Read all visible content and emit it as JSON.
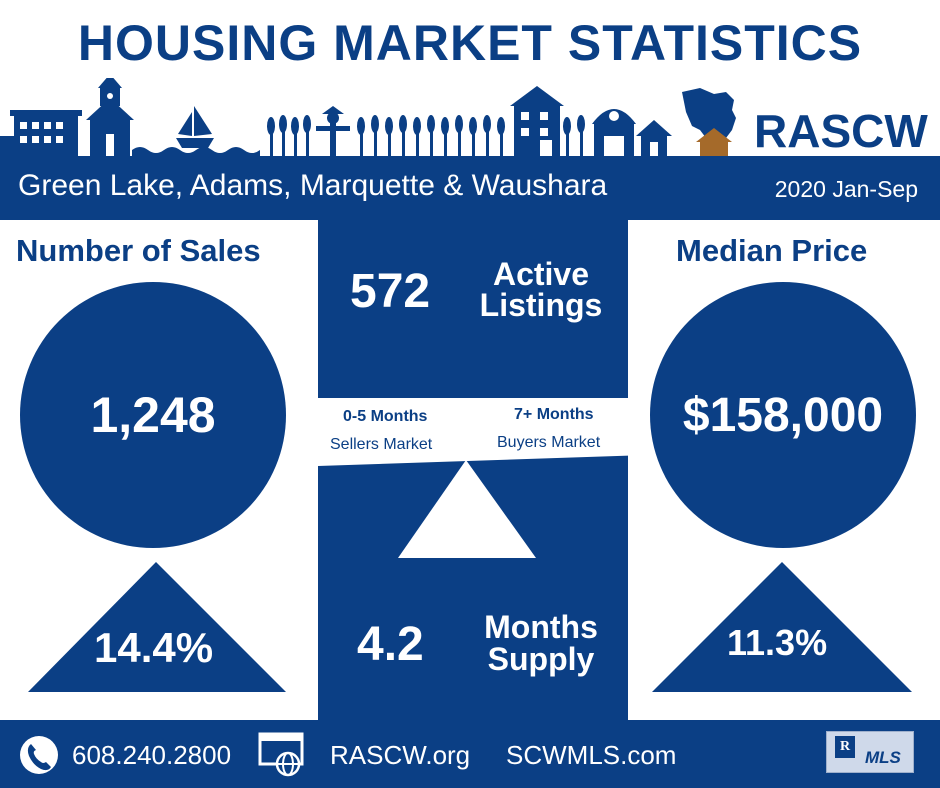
{
  "header": {
    "title": "HOUSING MARKET STATISTICS",
    "brand": "RASCW"
  },
  "band": {
    "region": "Green Lake, Adams, Marquette & Waushara",
    "period": "2020 Jan-Sep"
  },
  "sales": {
    "heading": "Number of Sales",
    "value": "1,248",
    "change": "14.4%"
  },
  "price": {
    "heading": "Median Price",
    "value": "$158,000",
    "change": "11.3%"
  },
  "active": {
    "value": "572",
    "label": "Active Listings"
  },
  "scale": {
    "left_range": "0-5 Months",
    "left_label": "Sellers Market",
    "right_range": "7+ Months",
    "right_label": "Buyers Market"
  },
  "supply": {
    "value": "4.2",
    "label": "Months Supply"
  },
  "footer": {
    "phone": "608.240.2800",
    "site1": "RASCW.org",
    "site2": "SCWMLS.com",
    "mls_badge": "MLS",
    "icons": [
      "phone-icon",
      "web-icon"
    ]
  },
  "colors": {
    "primary": "#0b3f85",
    "accent": "#a56a2a",
    "background": "#ffffff"
  }
}
